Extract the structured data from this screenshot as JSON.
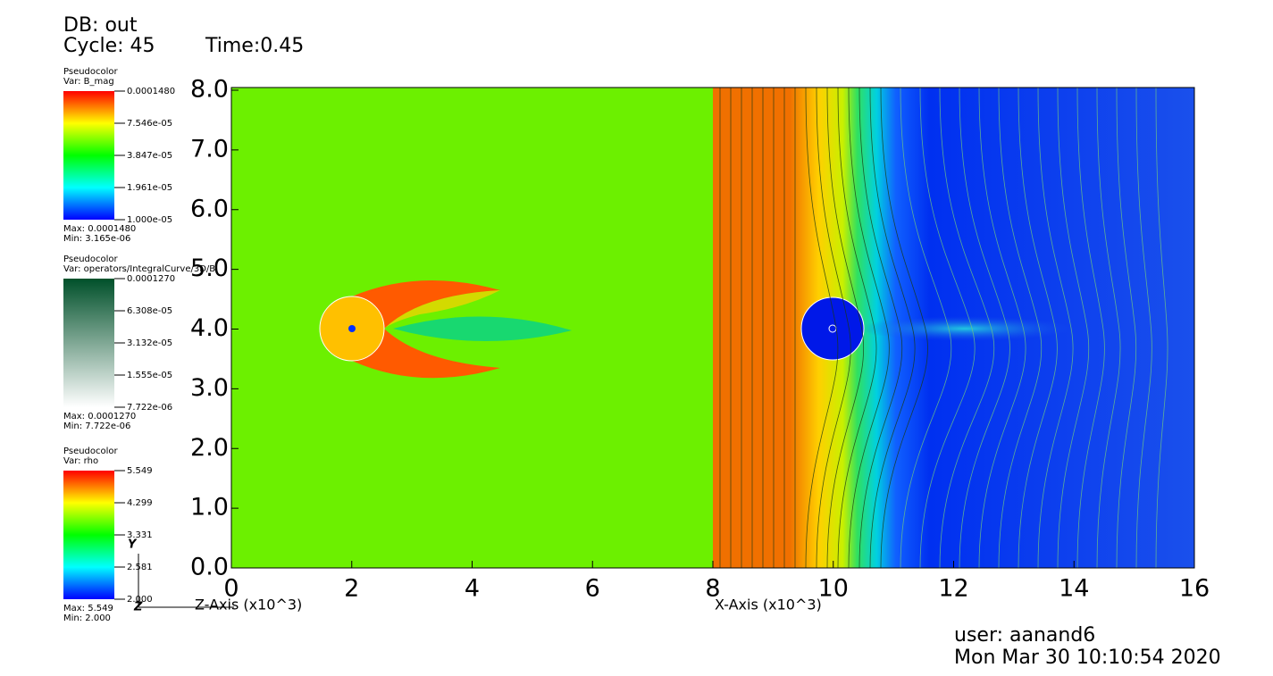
{
  "header": {
    "db": "DB: out",
    "cycle": "Cycle: 45",
    "time": "Time:0.45"
  },
  "legends": [
    {
      "plot": "Pseudocolor",
      "var": "Var: B_mag",
      "ticks": [
        "0.0001480",
        "7.546e-05",
        "3.847e-05",
        "1.961e-05",
        "1.000e-05"
      ],
      "max": "Max: 0.0001480",
      "min": "Min: 3.165e-06"
    },
    {
      "plot": "Pseudocolor",
      "var": "Var: operators/IntegralCurve/3D/B",
      "ticks": [
        "0.0001270",
        "6.308e-05",
        "3.132e-05",
        "1.555e-05",
        "7.722e-06"
      ],
      "max": "Max: 0.0001270",
      "min": "Min: 7.722e-06"
    },
    {
      "plot": "Pseudocolor",
      "var": "Var: rho",
      "ticks": [
        "5.549",
        "4.299",
        "3.331",
        "2.581",
        "2.000"
      ],
      "max": "Max: 5.549",
      "min": "Min: 2.000"
    }
  ],
  "plot": {
    "yticks": [
      "8.0",
      "7.0",
      "6.0",
      "5.0",
      "4.0",
      "3.0",
      "2.0",
      "1.0",
      "0.0"
    ],
    "xticks": [
      "0",
      "2",
      "4",
      "6",
      "8",
      "10",
      "12",
      "14",
      "16"
    ],
    "z_axis_title": "Z-Axis (x10^3)",
    "x_axis_title": "X-Axis (x10^3)",
    "triad": {
      "y": "Y",
      "z": "Z"
    }
  },
  "footer": {
    "user": "user: aanand6",
    "date": "Mon Mar 30 10:10:54 2020"
  }
}
